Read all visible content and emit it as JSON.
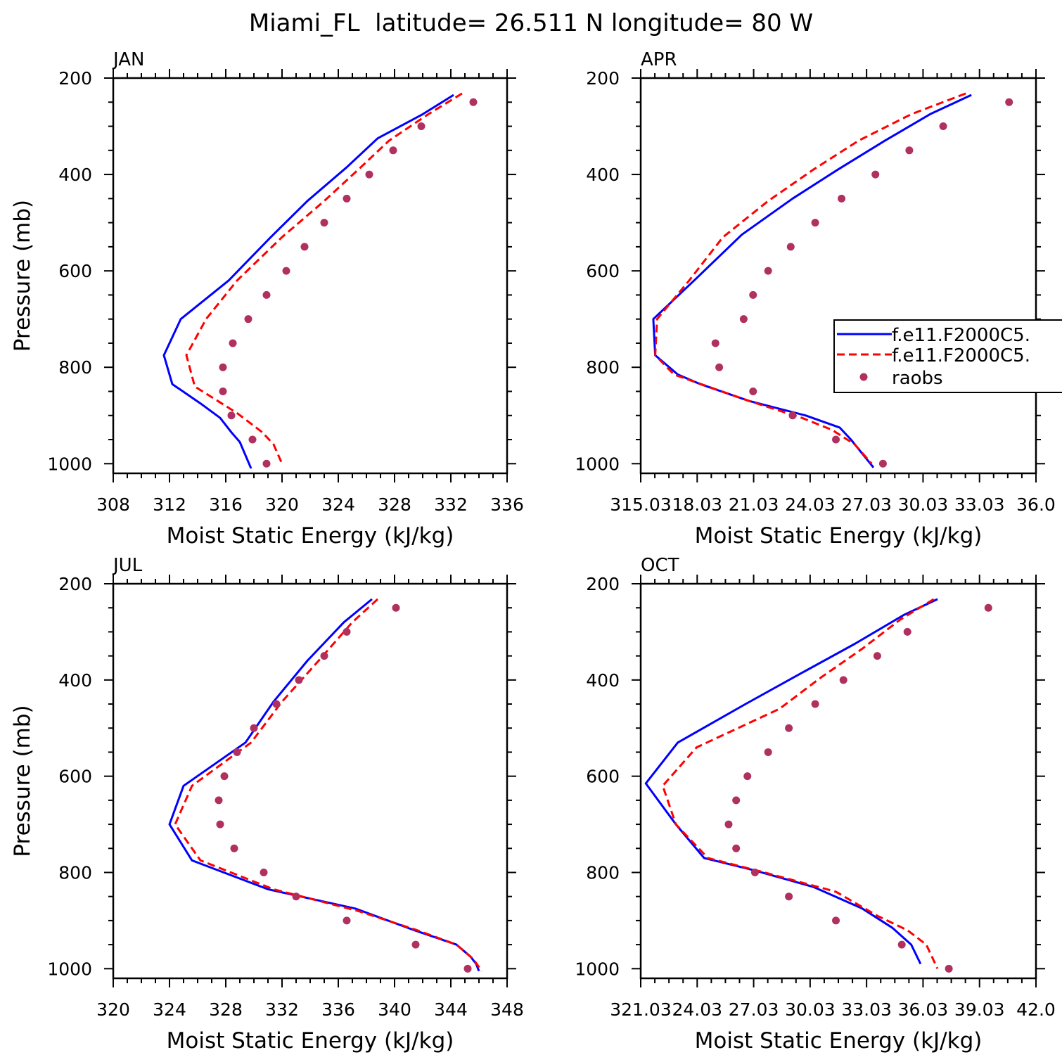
{
  "figure_title": "Miami_FL  latitude= 26.511 N longitude= 80 W",
  "legend": {
    "entries": [
      {
        "label": "f.e11.F2000C5.",
        "style": "line",
        "color": "#0000ff"
      },
      {
        "label": "f.e11.F2000C5.",
        "style": "dashed",
        "color": "#ff0000"
      },
      {
        "label": "raobs",
        "style": "marker",
        "color": "#b03060"
      }
    ]
  },
  "chart_data": [
    {
      "type": "line",
      "title": "JAN",
      "xlabel": "Moist Static Energy (kJ/kg)",
      "ylabel": "Pressure (mb)",
      "xlim": [
        308,
        336
      ],
      "ylim": [
        1020,
        200
      ],
      "xticks": [
        308,
        312,
        316,
        320,
        324,
        328,
        332,
        336
      ],
      "xtick_labels": [
        "308",
        "312",
        "316",
        "320",
        "324",
        "328",
        "332",
        "336"
      ],
      "yticks": [
        200,
        400,
        600,
        800,
        1000
      ],
      "ytick_labels": [
        "200",
        "400",
        "600",
        "800",
        "1000"
      ],
      "series": [
        {
          "style": "solid",
          "color": "#0000ff",
          "x": [
            332.2,
            330.0,
            326.8,
            324.6,
            321.8,
            319.2,
            316.2,
            312.8,
            311.6,
            312.2,
            314.2,
            315.6,
            316.4,
            317.0,
            317.8
          ],
          "y": [
            235,
            275,
            325,
            385,
            455,
            530,
            620,
            700,
            775,
            835,
            875,
            905,
            935,
            955,
            1010
          ]
        },
        {
          "style": "dashed",
          "color": "#ff0000",
          "x": [
            332.8,
            330.4,
            327.6,
            325.6,
            323.0,
            320.0,
            316.8,
            314.6,
            313.2,
            313.8,
            316.8,
            318.6,
            319.4,
            320.0
          ],
          "y": [
            232,
            275,
            330,
            385,
            455,
            530,
            620,
            700,
            775,
            840,
            895,
            935,
            960,
            1000
          ]
        },
        {
          "style": "marker",
          "color": "#b03060",
          "x": [
            333.6,
            329.9,
            327.9,
            326.2,
            324.6,
            323.0,
            321.6,
            320.3,
            318.9,
            317.6,
            316.5,
            315.8,
            315.8,
            316.4,
            317.9,
            318.9
          ],
          "y": [
            250,
            300,
            350,
            400,
            450,
            500,
            550,
            600,
            650,
            700,
            750,
            800,
            850,
            900,
            950,
            1000
          ]
        }
      ]
    },
    {
      "type": "line",
      "title": "APR",
      "xlabel": "Moist Static Energy (kJ/kg)",
      "ylabel": "",
      "xlim": [
        315.03,
        336.03
      ],
      "ylim": [
        1020,
        200
      ],
      "xticks": [
        315.03,
        318.03,
        321.03,
        324.03,
        327.03,
        330.03,
        333.03,
        336.03
      ],
      "xtick_labels": [
        "315.03",
        "18.03",
        "21.03",
        "24.03",
        "27.03",
        "30.03",
        "33.03",
        "36.0"
      ],
      "yticks": [
        200,
        400,
        600,
        800,
        1000
      ],
      "ytick_labels": [
        "200",
        "400",
        "600",
        "800",
        "1000"
      ],
      "series": [
        {
          "style": "solid",
          "color": "#0000ff",
          "x": [
            332.6,
            330.4,
            328.0,
            325.5,
            323.1,
            320.4,
            318.0,
            315.7,
            315.8,
            317.0,
            318.2,
            320.8,
            323.8,
            325.6,
            326.2,
            327.4
          ],
          "y": [
            235,
            275,
            330,
            390,
            450,
            525,
            615,
            700,
            775,
            815,
            835,
            870,
            900,
            925,
            950,
            1008
          ]
        },
        {
          "style": "dashed",
          "color": "#ff0000",
          "x": [
            332.3,
            329.4,
            326.6,
            324.2,
            321.8,
            319.4,
            317.6,
            315.9,
            315.8,
            316.8,
            318.6,
            320.8,
            323.6,
            325.2,
            326.4,
            327.3
          ],
          "y": [
            232,
            275,
            330,
            390,
            455,
            530,
            620,
            700,
            775,
            815,
            840,
            870,
            905,
            930,
            960,
            1000
          ]
        },
        {
          "style": "marker",
          "color": "#b03060",
          "x": [
            334.6,
            331.1,
            329.3,
            327.5,
            325.7,
            324.3,
            323.0,
            321.8,
            321.0,
            320.5,
            319.0,
            319.2,
            321.0,
            323.1,
            325.4,
            327.9
          ],
          "y": [
            250,
            300,
            350,
            400,
            450,
            500,
            550,
            600,
            650,
            700,
            750,
            800,
            850,
            900,
            950,
            1000
          ]
        }
      ]
    },
    {
      "type": "line",
      "title": "JUL",
      "xlabel": "Moist Static Energy (kJ/kg)",
      "ylabel": "Pressure (mb)",
      "xlim": [
        320,
        348
      ],
      "ylim": [
        1020,
        200
      ],
      "xticks": [
        320,
        324,
        328,
        332,
        336,
        340,
        344,
        348
      ],
      "xtick_labels": [
        "320",
        "324",
        "328",
        "332",
        "336",
        "340",
        "344",
        "348"
      ],
      "yticks": [
        200,
        400,
        600,
        800,
        1000
      ],
      "ytick_labels": [
        "200",
        "400",
        "600",
        "800",
        "1000"
      ],
      "series": [
        {
          "style": "solid",
          "color": "#0000ff",
          "x": [
            338.4,
            336.4,
            333.8,
            331.4,
            329.4,
            325.0,
            324.0,
            325.6,
            331.0,
            337.2,
            341.4,
            344.4,
            345.4,
            345.8,
            346.0
          ],
          "y": [
            232,
            280,
            360,
            445,
            530,
            620,
            700,
            775,
            835,
            875,
            920,
            950,
            975,
            990,
            1005
          ]
        },
        {
          "style": "dashed",
          "color": "#ff0000",
          "x": [
            338.8,
            337.0,
            334.6,
            332.0,
            329.8,
            325.6,
            324.4,
            326.2,
            331.4,
            337.4,
            341.6,
            344.4,
            345.6,
            346.2
          ],
          "y": [
            232,
            280,
            360,
            445,
            530,
            620,
            700,
            775,
            835,
            880,
            920,
            950,
            980,
            1005
          ]
        },
        {
          "style": "marker",
          "color": "#b03060",
          "x": [
            340.1,
            336.6,
            335.0,
            333.2,
            331.6,
            330.0,
            328.8,
            327.9,
            327.5,
            327.6,
            328.6,
            330.7,
            333.0,
            336.6,
            341.5,
            345.2
          ],
          "y": [
            250,
            300,
            350,
            400,
            450,
            500,
            550,
            600,
            650,
            700,
            750,
            800,
            850,
            900,
            950,
            1000
          ]
        }
      ]
    },
    {
      "type": "line",
      "title": "OCT",
      "xlabel": "Moist Static Energy (kJ/kg)",
      "ylabel": "",
      "xlim": [
        321.03,
        342.03
      ],
      "ylim": [
        1020,
        200
      ],
      "xticks": [
        321.03,
        324.03,
        327.03,
        330.03,
        333.03,
        336.03,
        339.03,
        342.03
      ],
      "xtick_labels": [
        "321.03",
        "24.03",
        "27.03",
        "30.03",
        "33.03",
        "36.03",
        "39.03",
        "42.0"
      ],
      "yticks": [
        200,
        400,
        600,
        800,
        1000
      ],
      "ytick_labels": [
        "200",
        "400",
        "600",
        "800",
        "1000"
      ],
      "series": [
        {
          "style": "solid",
          "color": "#0000ff",
          "x": [
            336.8,
            335.0,
            332.4,
            329.6,
            326.6,
            323.0,
            321.3,
            322.9,
            324.4,
            327.0,
            330.2,
            332.8,
            334.4,
            335.4,
            335.9
          ],
          "y": [
            232,
            265,
            325,
            385,
            450,
            530,
            615,
            700,
            770,
            795,
            830,
            875,
            915,
            950,
            990
          ]
        },
        {
          "style": "dashed",
          "color": "#ff0000",
          "x": [
            336.6,
            334.8,
            332.8,
            330.6,
            328.4,
            324.0,
            322.2,
            322.9,
            324.6,
            327.6,
            331.4,
            333.6,
            335.2,
            336.2,
            336.8
          ],
          "y": [
            232,
            275,
            335,
            395,
            460,
            540,
            620,
            700,
            770,
            800,
            840,
            890,
            920,
            950,
            1000
          ]
        },
        {
          "style": "marker",
          "color": "#b03060",
          "x": [
            339.5,
            335.2,
            333.6,
            331.8,
            330.3,
            328.9,
            327.8,
            326.7,
            326.1,
            325.7,
            326.1,
            327.1,
            328.9,
            331.4,
            334.9,
            337.4
          ],
          "y": [
            250,
            300,
            350,
            400,
            450,
            500,
            550,
            600,
            650,
            700,
            750,
            800,
            850,
            900,
            950,
            1000
          ]
        }
      ]
    }
  ]
}
